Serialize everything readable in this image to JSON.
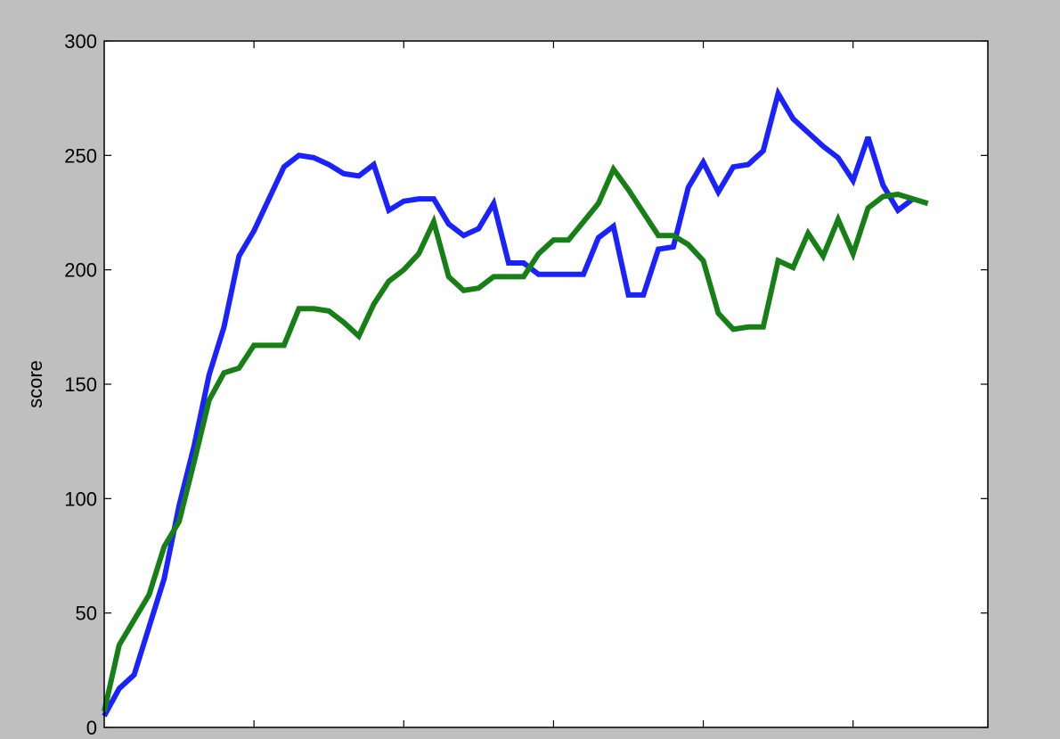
{
  "chart_data": {
    "type": "line",
    "ylabel": "score",
    "xlabel": "",
    "title": "",
    "ylim": [
      0,
      300
    ],
    "yticks": [
      0,
      50,
      100,
      150,
      200,
      250,
      300
    ],
    "xlim": [
      0,
      59
    ],
    "x_tick_positions": [
      10,
      20,
      30,
      40,
      50,
      59
    ],
    "x_tick_labels_visible": false,
    "grid": false,
    "legend": "none",
    "series": [
      {
        "color": "#1a22ff",
        "values": [
          5,
          17,
          23,
          44,
          65,
          97,
          123,
          154,
          175,
          206,
          217,
          231,
          245,
          250,
          249,
          246,
          242,
          241,
          246,
          226,
          230,
          231,
          231,
          220,
          215,
          218,
          229,
          203,
          203,
          198,
          198,
          198,
          198,
          214,
          219,
          189,
          189,
          209,
          210,
          236,
          247,
          234,
          245,
          246,
          252,
          277,
          266,
          260,
          254,
          249,
          239,
          258,
          237,
          226,
          231
        ]
      },
      {
        "color": "#168016",
        "values": [
          7,
          36,
          47,
          58,
          79,
          90,
          116,
          143,
          155,
          157,
          167,
          167,
          167,
          183,
          183,
          182,
          177,
          171,
          185,
          195,
          200,
          207,
          221,
          197,
          191,
          192,
          197,
          197,
          197,
          207,
          213,
          213,
          221,
          229,
          244,
          235,
          225,
          215,
          215,
          211,
          204,
          181,
          174,
          175,
          175,
          204,
          201,
          216,
          206,
          222,
          207,
          227,
          232,
          233,
          231,
          229
        ]
      }
    ]
  }
}
